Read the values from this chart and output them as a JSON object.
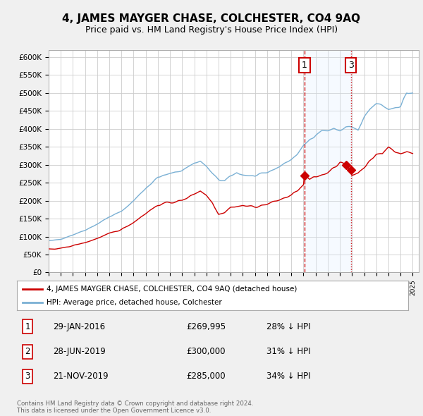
{
  "title": "4, JAMES MAYGER CHASE, COLCHESTER, CO4 9AQ",
  "subtitle": "Price paid vs. HM Land Registry's House Price Index (HPI)",
  "title_fontsize": 11,
  "subtitle_fontsize": 9,
  "ylim": [
    0,
    620000
  ],
  "yticks": [
    0,
    50000,
    100000,
    150000,
    200000,
    250000,
    300000,
    350000,
    400000,
    450000,
    500000,
    550000,
    600000
  ],
  "ytick_labels": [
    "£0",
    "£50K",
    "£100K",
    "£150K",
    "£200K",
    "£250K",
    "£300K",
    "£350K",
    "£400K",
    "£450K",
    "£500K",
    "£550K",
    "£600K"
  ],
  "background_color": "#f0f0f0",
  "plot_bg_color": "#ffffff",
  "grid_color": "#cccccc",
  "red_color": "#cc0000",
  "blue_color": "#7ab0d4",
  "shade_color": "#ddeeff",
  "transactions": [
    {
      "date": 2016.08,
      "price": 269995,
      "label": "1"
    },
    {
      "date": 2019.49,
      "price": 300000,
      "label": "2"
    },
    {
      "date": 2019.9,
      "price": 285000,
      "label": "3"
    }
  ],
  "table_rows": [
    {
      "num": "1",
      "date": "29-JAN-2016",
      "price": "£269,995",
      "hpi": "28% ↓ HPI"
    },
    {
      "num": "2",
      "date": "28-JUN-2019",
      "price": "£300,000",
      "hpi": "31% ↓ HPI"
    },
    {
      "num": "3",
      "date": "21-NOV-2019",
      "price": "£285,000",
      "hpi": "34% ↓ HPI"
    }
  ],
  "legend_line1": "4, JAMES MAYGER CHASE, COLCHESTER, CO4 9AQ (detached house)",
  "legend_line2": "HPI: Average price, detached house, Colchester",
  "footer": "Contains HM Land Registry data © Crown copyright and database right 2024.\nThis data is licensed under the Open Government Licence v3.0.",
  "xlim_start": 1995,
  "xlim_end": 2025.5
}
